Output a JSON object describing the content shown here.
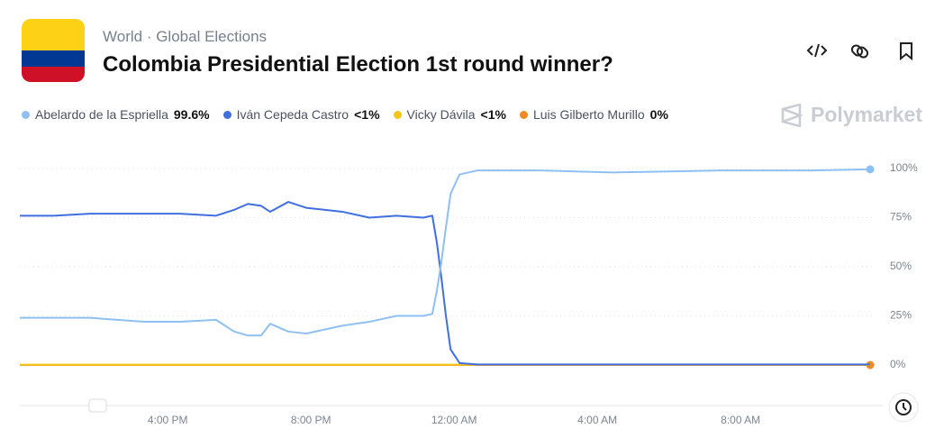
{
  "header": {
    "category": "World",
    "subcategory": "Global Elections",
    "title": "Colombia Presidential Election 1st round winner?",
    "brand": "Polymarket"
  },
  "chart_data": {
    "type": "line",
    "x": [
      11.87,
      12.83,
      13.83,
      14.59,
      15.34,
      16.35,
      17.35,
      17.86,
      18.24,
      18.61,
      18.86,
      19.37,
      19.87,
      20.37,
      20.88,
      21.63,
      22.39,
      23.14,
      23.39,
      23.52,
      23.64,
      23.77,
      23.9,
      24.15,
      24.65,
      26.41,
      28.42,
      31.44,
      33.96,
      35.62
    ],
    "xlim": [
      11.87,
      35.87
    ],
    "xticks": [
      {
        "value": 16,
        "label": "4:00 PM"
      },
      {
        "value": 20,
        "label": "8:00 PM"
      },
      {
        "value": 24,
        "label": "12:00 AM"
      },
      {
        "value": 28,
        "label": "4:00 AM"
      },
      {
        "value": 32,
        "label": "8:00 AM"
      }
    ],
    "ylim": [
      0,
      100
    ],
    "yticks": [
      {
        "value": 0,
        "label": "0%"
      },
      {
        "value": 25,
        "label": "25%"
      },
      {
        "value": 50,
        "label": "50%"
      },
      {
        "value": 75,
        "label": "75%"
      },
      {
        "value": 100,
        "label": "100%"
      }
    ],
    "grid": true,
    "series": [
      {
        "name": "Abelardo de la Espriella",
        "current_label": "99.6%",
        "color": "#8ec0f3",
        "end_marker": true,
        "values": [
          24,
          24,
          24,
          23,
          22,
          22,
          23,
          17,
          15,
          15,
          21,
          17,
          16,
          18,
          20,
          22,
          25,
          25,
          26,
          38,
          52,
          70,
          87,
          97,
          99,
          99,
          98,
          99,
          99,
          99.6
        ]
      },
      {
        "name": "Iván Cepeda Castro",
        "current_label": "<1%",
        "color": "#3f6fe0",
        "end_marker": false,
        "values": [
          76,
          76,
          77,
          77,
          77,
          77,
          76,
          79,
          82,
          81,
          78,
          83,
          80,
          79,
          78,
          75,
          76,
          75,
          76,
          62,
          45,
          25,
          8,
          1,
          0.3,
          0.3,
          0.3,
          0.3,
          0.3,
          0.3
        ]
      },
      {
        "name": "Vicky Dávila",
        "current_label": "<1%",
        "color": "#f5c518",
        "end_marker": false,
        "values": [
          0.2,
          0.2,
          0.2,
          0.2,
          0.2,
          0.2,
          0.2,
          0.2,
          0.2,
          0.2,
          0.2,
          0.2,
          0.2,
          0.2,
          0.2,
          0.2,
          0.2,
          0.2,
          0.2,
          0.2,
          0.2,
          0.2,
          0.2,
          0.2,
          0.2,
          0.2,
          0.2,
          0.2,
          0.2,
          0.2
        ]
      },
      {
        "name": "Luis Gilberto Murillo",
        "current_label": "0%",
        "color": "#f08a24",
        "end_marker": true,
        "values": [
          0,
          0,
          0,
          0,
          0,
          0,
          0,
          0,
          0,
          0,
          0,
          0,
          0,
          0,
          0,
          0,
          0,
          0,
          0,
          0,
          0,
          0,
          0,
          0,
          0,
          0,
          0,
          0,
          0,
          0
        ]
      }
    ]
  }
}
